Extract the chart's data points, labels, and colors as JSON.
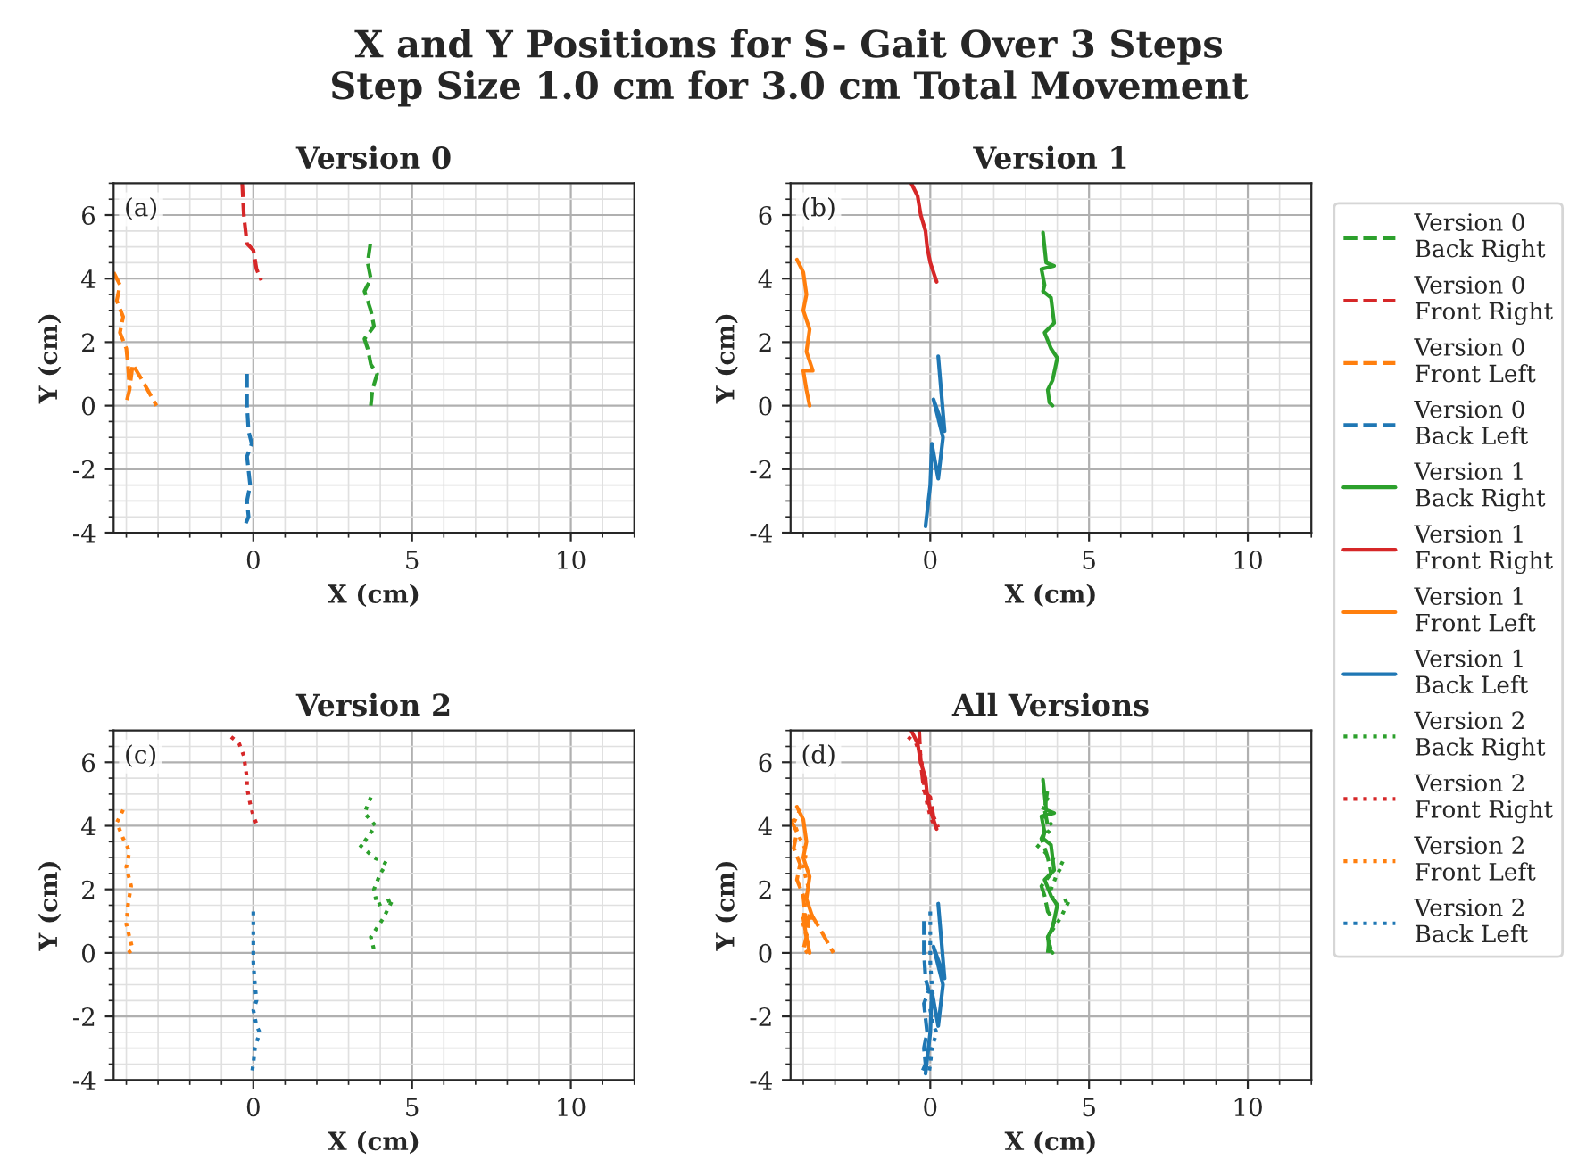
{
  "chart_data": [
    {
      "type": "other",
      "title": "X and Y Positions for S- Gait Over 3 Steps\nStep Size 1.0 cm for 3.0 cm Total Movement"
    },
    {
      "type": "line",
      "title": "Version 0",
      "xlabel": "X (cm)",
      "ylabel": "Y (cm)",
      "annotations": [
        "(a)"
      ],
      "xlim": [
        -4.4,
        12
      ],
      "ylim": [
        -4,
        7
      ],
      "xticks": [
        0,
        5,
        10
      ],
      "yticks": [
        -4,
        -2,
        0,
        2,
        4,
        6
      ],
      "grid": true,
      "legend": false,
      "series": [
        {
          "color": "#2ca02c",
          "line_style": "dashed",
          "x": [
            3.7,
            3.75,
            3.9,
            3.7,
            3.6,
            3.5,
            3.8,
            3.7,
            3.5,
            3.7,
            3.6,
            3.7
          ],
          "values": [
            0,
            0.5,
            1.0,
            1.3,
            1.8,
            2.1,
            2.5,
            3.0,
            3.6,
            4.0,
            4.5,
            5.2
          ]
        },
        {
          "color": "#d62728",
          "line_style": "dashed",
          "x": [
            -0.35,
            -0.3,
            -0.2,
            0,
            0.1,
            0.25
          ],
          "values": [
            7.0,
            6.0,
            5.1,
            4.9,
            4.3,
            3.95
          ]
        },
        {
          "color": "#ff7f0e",
          "line_style": "dashed",
          "x": [
            -4.4,
            -4.2,
            -4.3,
            -4.1,
            -4.2,
            -4.0,
            -3.95,
            -3.9,
            -4.0,
            -3.9,
            -3.8,
            -3.5,
            -3.05
          ],
          "values": [
            4.2,
            3.8,
            3.3,
            2.8,
            2.3,
            1.8,
            1.3,
            0.5,
            0.1,
            0.5,
            1.3,
            0.8,
            0
          ]
        },
        {
          "color": "#1f77b4",
          "line_style": "dashed",
          "x": [
            -0.2,
            -0.2,
            -0.15,
            -0.05,
            -0.2,
            -0.1,
            -0.2,
            -0.15,
            -0.3
          ],
          "values": [
            1.0,
            0,
            -0.8,
            -1.2,
            -1.6,
            -2.5,
            -3.0,
            -3.5,
            -3.85
          ]
        }
      ]
    },
    {
      "type": "line",
      "title": "Version 1",
      "xlabel": "X (cm)",
      "ylabel": "Y (cm)",
      "annotations": [
        "(b)"
      ],
      "xlim": [
        -4.4,
        12
      ],
      "ylim": [
        -4,
        7
      ],
      "xticks": [
        0,
        5,
        10
      ],
      "yticks": [
        -4,
        -2,
        0,
        2,
        4,
        6
      ],
      "grid": true,
      "legend": false,
      "series": [
        {
          "color": "#2ca02c",
          "line_style": "solid",
          "x": [
            3.55,
            3.65,
            3.9,
            3.5,
            3.6,
            3.55,
            3.8,
            3.9,
            3.6,
            3.8,
            4.0,
            3.85,
            3.7,
            3.75,
            3.85
          ],
          "values": [
            5.45,
            4.5,
            4.4,
            4.3,
            3.8,
            3.6,
            3.4,
            2.6,
            2.3,
            1.8,
            1.5,
            0.8,
            0.5,
            0.1,
            0
          ]
        },
        {
          "color": "#d62728",
          "line_style": "solid",
          "x": [
            -0.6,
            -0.4,
            -0.3,
            -0.15,
            -0.1,
            0.0,
            0.2
          ],
          "values": [
            7.0,
            6.6,
            6.0,
            5.5,
            5.0,
            4.5,
            3.9
          ]
        },
        {
          "color": "#ff7f0e",
          "line_style": "solid",
          "x": [
            -4.2,
            -4.0,
            -3.9,
            -4.0,
            -3.8,
            -3.9,
            -3.7,
            -4.0,
            -3.9,
            -3.8
          ],
          "values": [
            4.6,
            4.2,
            3.5,
            3.0,
            2.4,
            1.7,
            1.1,
            1.1,
            0.5,
            0
          ]
        },
        {
          "color": "#1f77b4",
          "line_style": "solid",
          "x": [
            -0.15,
            0.0,
            0.05,
            0.25,
            0.4,
            0.1,
            0.45,
            0.25
          ],
          "values": [
            -3.8,
            -2.5,
            -1.2,
            -2.3,
            -1.0,
            0.2,
            -0.8,
            1.55
          ]
        }
      ]
    },
    {
      "type": "line",
      "title": "Version 2",
      "xlabel": "X (cm)",
      "ylabel": "Y (cm)",
      "annotations": [
        "(c)"
      ],
      "xlim": [
        -4.4,
        12
      ],
      "ylim": [
        -4,
        7
      ],
      "xticks": [
        0,
        5,
        10
      ],
      "yticks": [
        -4,
        -2,
        0,
        2,
        4,
        6
      ],
      "grid": true,
      "legend": false,
      "series": [
        {
          "color": "#2ca02c",
          "line_style": "dotted",
          "x": [
            3.7,
            3.5,
            3.85,
            3.5,
            3.35,
            3.8,
            4.2,
            4.0,
            3.8,
            3.9,
            4.4,
            4.1,
            3.9,
            3.7,
            3.8,
            3.8
          ],
          "values": [
            4.9,
            4.4,
            4.0,
            3.5,
            3.4,
            3.0,
            2.8,
            2.5,
            2.0,
            1.5,
            1.7,
            1.1,
            0.8,
            0.5,
            0.1,
            0
          ]
        },
        {
          "color": "#d62728",
          "line_style": "dotted",
          "x": [
            -0.7,
            -0.45,
            -0.3,
            -0.2,
            -0.2,
            -0.1,
            0.0,
            0.15
          ],
          "values": [
            6.8,
            6.6,
            6.2,
            5.5,
            5.2,
            4.7,
            4.3,
            3.95
          ]
        },
        {
          "color": "#ff7f0e",
          "line_style": "dotted",
          "x": [
            -4.1,
            -4.3,
            -4.1,
            -3.9,
            -4.0,
            -3.85,
            -3.95,
            -4.0,
            -3.9,
            -3.8,
            -3.95
          ],
          "values": [
            4.5,
            4.1,
            3.6,
            3.2,
            2.7,
            2.1,
            1.5,
            0.9,
            0.5,
            0.1,
            0
          ]
        },
        {
          "color": "#1f77b4",
          "line_style": "dotted",
          "x": [
            0,
            0,
            0,
            0.05,
            0.1,
            0,
            0.1,
            0.2,
            0.05,
            0,
            -0.05
          ],
          "values": [
            1.3,
            0.5,
            -0.3,
            -1.0,
            -1.5,
            -1.8,
            -2.3,
            -2.5,
            -3.0,
            -3.5,
            -3.8
          ]
        }
      ]
    },
    {
      "type": "line",
      "title": "All Versions",
      "xlabel": "X (cm)",
      "ylabel": "Y (cm)",
      "annotations": [
        "(d)"
      ],
      "xlim": [
        -4.4,
        12
      ],
      "ylim": [
        -4,
        7
      ],
      "xticks": [
        0,
        5,
        10
      ],
      "yticks": [
        -4,
        -2,
        0,
        2,
        4,
        6
      ],
      "grid": true,
      "legend": "right",
      "series": [
        {
          "name": "Version 0\nBack Right",
          "color": "#2ca02c",
          "line_style": "dashed",
          "x": [
            3.7,
            3.75,
            3.9,
            3.7,
            3.6,
            3.5,
            3.8,
            3.7,
            3.5,
            3.7,
            3.6,
            3.7
          ],
          "values": [
            0,
            0.5,
            1.0,
            1.3,
            1.8,
            2.1,
            2.5,
            3.0,
            3.6,
            4.0,
            4.5,
            5.2
          ]
        },
        {
          "name": "Version 0\nFront Right",
          "color": "#d62728",
          "line_style": "dashed",
          "x": [
            -0.35,
            -0.3,
            -0.2,
            0,
            0.1,
            0.25
          ],
          "values": [
            7.0,
            6.0,
            5.1,
            4.9,
            4.3,
            3.95
          ]
        },
        {
          "name": "Version 0\nFront Left",
          "color": "#ff7f0e",
          "line_style": "dashed",
          "x": [
            -4.4,
            -4.2,
            -4.3,
            -4.1,
            -4.2,
            -4.0,
            -3.95,
            -3.9,
            -4.0,
            -3.9,
            -3.8,
            -3.5,
            -3.05
          ],
          "values": [
            4.2,
            3.8,
            3.3,
            2.8,
            2.3,
            1.8,
            1.3,
            0.5,
            0.1,
            0.5,
            1.3,
            0.8,
            0
          ]
        },
        {
          "name": "Version 0\nBack Left",
          "color": "#1f77b4",
          "line_style": "dashed",
          "x": [
            -0.2,
            -0.2,
            -0.15,
            -0.05,
            -0.2,
            -0.1,
            -0.2,
            -0.15,
            -0.3
          ],
          "values": [
            1.0,
            0,
            -0.8,
            -1.2,
            -1.6,
            -2.5,
            -3.0,
            -3.5,
            -3.85
          ]
        },
        {
          "name": "Version 1\nBack Right",
          "color": "#2ca02c",
          "line_style": "solid",
          "x": [
            3.55,
            3.65,
            3.9,
            3.5,
            3.6,
            3.55,
            3.8,
            3.9,
            3.6,
            3.8,
            4.0,
            3.85,
            3.7,
            3.75,
            3.85
          ],
          "values": [
            5.45,
            4.5,
            4.4,
            4.3,
            3.8,
            3.6,
            3.4,
            2.6,
            2.3,
            1.8,
            1.5,
            0.8,
            0.5,
            0.1,
            0
          ]
        },
        {
          "name": "Version 1\nFront Right",
          "color": "#d62728",
          "line_style": "solid",
          "x": [
            -0.6,
            -0.4,
            -0.3,
            -0.15,
            -0.1,
            0.0,
            0.2
          ],
          "values": [
            7.0,
            6.6,
            6.0,
            5.5,
            5.0,
            4.5,
            3.9
          ]
        },
        {
          "name": "Version 1\nFront Left",
          "color": "#ff7f0e",
          "line_style": "solid",
          "x": [
            -4.2,
            -4.0,
            -3.9,
            -4.0,
            -3.8,
            -3.9,
            -3.7,
            -4.0,
            -3.9,
            -3.8
          ],
          "values": [
            4.6,
            4.2,
            3.5,
            3.0,
            2.4,
            1.7,
            1.1,
            1.1,
            0.5,
            0
          ]
        },
        {
          "name": "Version 1\nBack Left",
          "color": "#1f77b4",
          "line_style": "solid",
          "x": [
            -0.15,
            0.0,
            0.05,
            0.25,
            0.4,
            0.1,
            0.45,
            0.25
          ],
          "values": [
            -3.8,
            -2.5,
            -1.2,
            -2.3,
            -1.0,
            0.2,
            -0.8,
            1.55
          ]
        },
        {
          "name": "Version 2\nBack Right",
          "color": "#2ca02c",
          "line_style": "dotted",
          "x": [
            3.7,
            3.5,
            3.85,
            3.5,
            3.35,
            3.8,
            4.2,
            4.0,
            3.8,
            3.9,
            4.4,
            4.1,
            3.9,
            3.7,
            3.8,
            3.8
          ],
          "values": [
            4.9,
            4.4,
            4.0,
            3.5,
            3.4,
            3.0,
            2.8,
            2.5,
            2.0,
            1.5,
            1.7,
            1.1,
            0.8,
            0.5,
            0.1,
            0
          ]
        },
        {
          "name": "Version 2\nFront Right",
          "color": "#d62728",
          "line_style": "dotted",
          "x": [
            -0.7,
            -0.45,
            -0.3,
            -0.2,
            -0.2,
            -0.1,
            0.0,
            0.15
          ],
          "values": [
            6.8,
            6.6,
            6.2,
            5.5,
            5.2,
            4.7,
            4.3,
            3.95
          ]
        },
        {
          "name": "Version 2\nFront Left",
          "color": "#ff7f0e",
          "line_style": "dotted",
          "x": [
            -4.1,
            -4.3,
            -4.1,
            -3.9,
            -4.0,
            -3.85,
            -3.95,
            -4.0,
            -3.9,
            -3.8,
            -3.95
          ],
          "values": [
            4.5,
            4.1,
            3.6,
            3.2,
            2.7,
            2.1,
            1.5,
            0.9,
            0.5,
            0.1,
            0
          ]
        },
        {
          "name": "Version 2\nBack Left",
          "color": "#1f77b4",
          "line_style": "dotted",
          "x": [
            0,
            0,
            0,
            0.05,
            0.1,
            0,
            0.1,
            0.2,
            0.05,
            0,
            -0.05
          ],
          "values": [
            1.3,
            0.5,
            -0.3,
            -1.0,
            -1.5,
            -1.8,
            -2.3,
            -2.5,
            -3.0,
            -3.5,
            -3.8
          ]
        }
      ]
    }
  ]
}
